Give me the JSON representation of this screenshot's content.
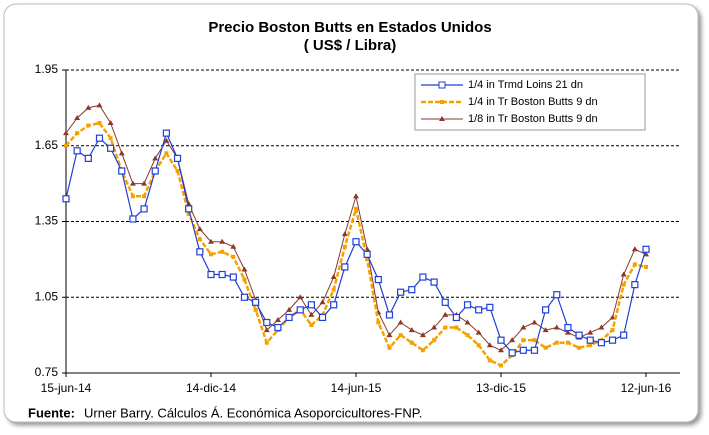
{
  "chart_data": {
    "type": "line",
    "title": "Precio Boston  Butts en Estados Unidos",
    "subtitle": "( US$ / Libra)",
    "categories": [
      "15-jun-14",
      null,
      null,
      null,
      null,
      null,
      null,
      null,
      null,
      null,
      null,
      null,
      null,
      "14-dic-14",
      null,
      null,
      null,
      null,
      null,
      null,
      null,
      null,
      null,
      null,
      null,
      null,
      "14-jun-15",
      null,
      null,
      null,
      null,
      null,
      null,
      null,
      null,
      null,
      null,
      null,
      null,
      "13-dic-15",
      null,
      null,
      null,
      null,
      null,
      null,
      null,
      null,
      null,
      null,
      null,
      null,
      "12-jun-16"
    ],
    "series": [
      {
        "name": "1/4 in Trmd Loins 21 dn",
        "color": "#1f3fd6",
        "values": [
          1.44,
          1.63,
          1.6,
          1.68,
          1.64,
          1.55,
          1.36,
          1.4,
          1.55,
          1.7,
          1.6,
          1.4,
          1.23,
          1.14,
          1.14,
          1.13,
          1.05,
          1.03,
          0.95,
          0.93,
          0.97,
          1.0,
          1.02,
          0.97,
          1.02,
          1.17,
          1.27,
          1.22,
          1.12,
          0.98,
          1.07,
          1.08,
          1.13,
          1.11,
          1.03,
          0.97,
          1.02,
          1.0,
          1.01,
          0.88,
          0.83,
          0.84,
          0.84,
          1.0,
          1.06,
          0.93,
          0.9,
          0.88,
          0.87,
          0.88,
          0.9,
          1.1,
          1.24
        ]
      },
      {
        "name": "1/4 in Tr Boston Butts 9 dn",
        "color": "#f5a100",
        "values": [
          1.65,
          1.7,
          1.73,
          1.74,
          1.68,
          1.55,
          1.45,
          1.45,
          1.55,
          1.62,
          1.55,
          1.38,
          1.28,
          1.22,
          1.23,
          1.21,
          1.12,
          1.0,
          0.87,
          0.92,
          0.97,
          1.0,
          0.94,
          0.98,
          1.08,
          1.25,
          1.4,
          1.2,
          0.95,
          0.85,
          0.9,
          0.87,
          0.84,
          0.88,
          0.93,
          0.93,
          0.9,
          0.86,
          0.8,
          0.78,
          0.82,
          0.88,
          0.88,
          0.85,
          0.87,
          0.87,
          0.85,
          0.86,
          0.88,
          0.92,
          1.1,
          1.18,
          1.17
        ]
      },
      {
        "name": "1/8 in Tr Boston Butts 9 dn",
        "color": "#8b3a2a",
        "values": [
          1.7,
          1.76,
          1.8,
          1.81,
          1.74,
          1.62,
          1.5,
          1.5,
          1.6,
          1.67,
          1.6,
          1.42,
          1.32,
          1.27,
          1.27,
          1.25,
          1.16,
          1.04,
          0.92,
          0.96,
          1.0,
          1.05,
          0.98,
          1.03,
          1.13,
          1.3,
          1.45,
          1.24,
          0.99,
          0.9,
          0.95,
          0.92,
          0.9,
          0.93,
          0.98,
          0.98,
          0.95,
          0.91,
          0.86,
          0.84,
          0.88,
          0.93,
          0.95,
          0.92,
          0.93,
          0.91,
          0.89,
          0.91,
          0.93,
          0.97,
          1.14,
          1.24,
          1.22
        ]
      }
    ],
    "ylim": [
      0.75,
      1.95
    ],
    "yticks": [
      0.75,
      1.05,
      1.35,
      1.65,
      1.95
    ],
    "grid": true,
    "legend": "upper right",
    "source_label": "Fuente:",
    "source_text": "Urner Barry. Cálculos Á. Económica Asoporcicultores-FNP."
  }
}
